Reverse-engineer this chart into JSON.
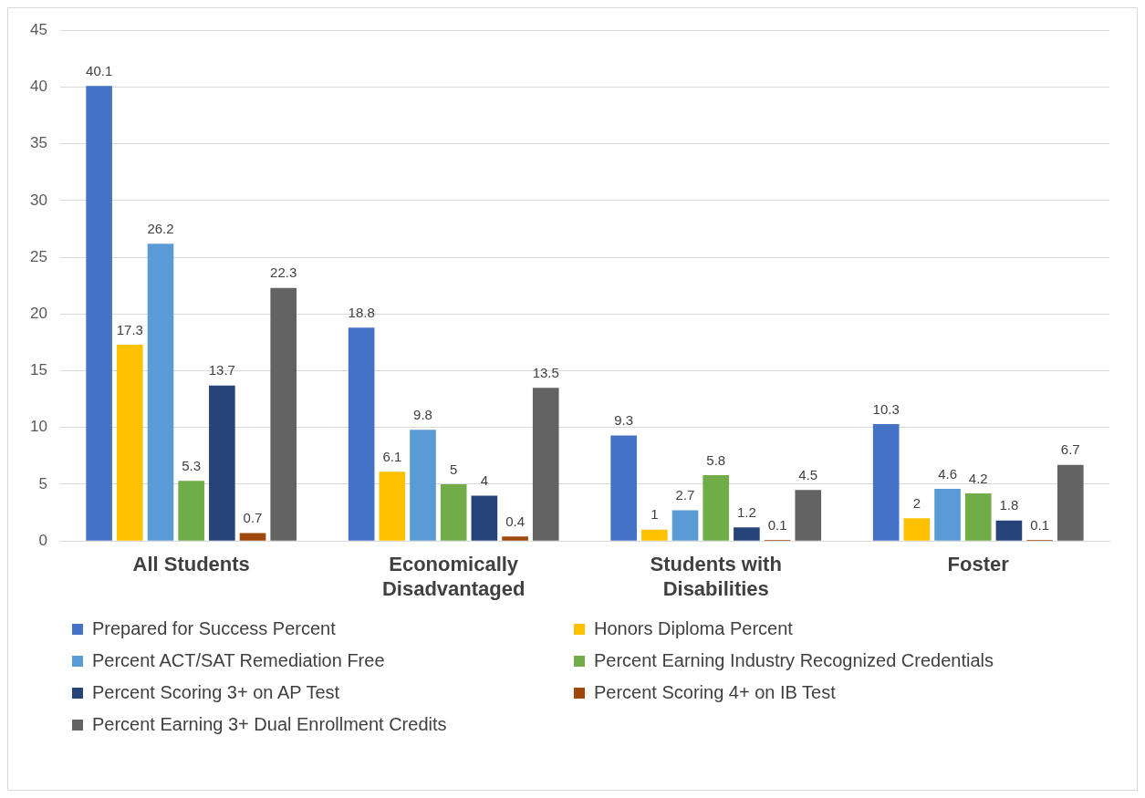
{
  "chart_data": {
    "type": "bar",
    "categories": [
      "All Students",
      "Economically Disadvantaged",
      "Students with Disabilities",
      "Foster"
    ],
    "series": [
      {
        "name": "Prepared for Success Percent",
        "color": "#4472c4",
        "values": [
          40.1,
          18.8,
          9.3,
          10.3
        ]
      },
      {
        "name": "Honors Diploma Percent",
        "color": "#ffc000",
        "values": [
          17.3,
          6.1,
          1,
          2
        ]
      },
      {
        "name": "Percent ACT/SAT Remediation Free",
        "color": "#5b9bd5",
        "values": [
          26.2,
          9.8,
          2.7,
          4.6
        ]
      },
      {
        "name": "Percent Earning Industry Recognized Credentials",
        "color": "#70ad47",
        "values": [
          5.3,
          5,
          5.8,
          4.2
        ]
      },
      {
        "name": "Percent Scoring 3+ on AP Test",
        "color": "#264478",
        "values": [
          13.7,
          4,
          1.2,
          1.8
        ]
      },
      {
        "name": "Percent Scoring 4+ on IB Test",
        "color": "#9e480e",
        "values": [
          0.7,
          0.4,
          0.1,
          0.1
        ]
      },
      {
        "name": "Percent Earning 3+ Dual Enrollment Credits",
        "color": "#636363",
        "values": [
          22.3,
          13.5,
          4.5,
          6.7
        ]
      }
    ],
    "ylim": [
      0,
      45
    ],
    "yticks": [
      0,
      5,
      10,
      15,
      20,
      25,
      30,
      35,
      40,
      45
    ],
    "grid": "y",
    "legend": "bottom",
    "data_labels": true
  }
}
